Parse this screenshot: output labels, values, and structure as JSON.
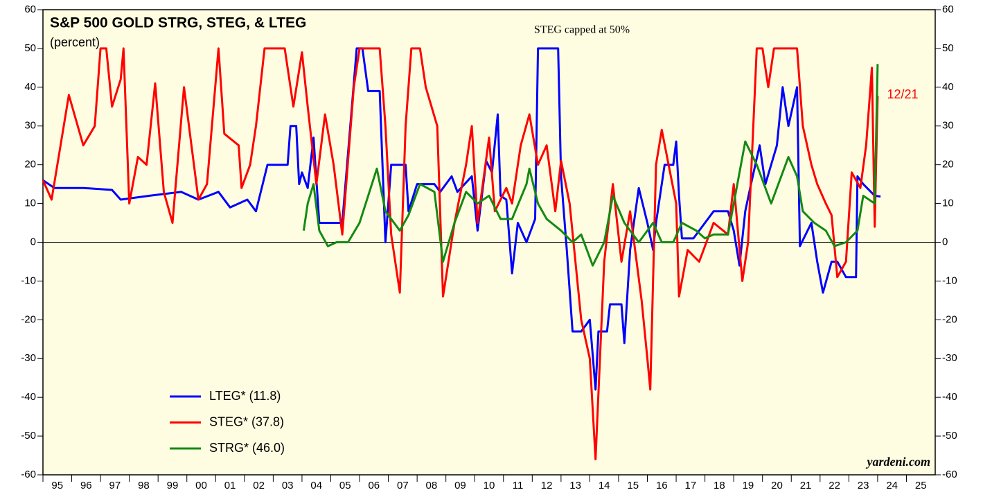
{
  "chart_data": {
    "type": "line",
    "title": "S&P 500 GOLD STRG, STEG, & LTEG",
    "subtitle": "(percent)",
    "annotations": [
      "STEG capped at 50%",
      "12/21",
      "yardeni.com"
    ],
    "xlim": [
      1995,
      2026
    ],
    "xticks": [
      {
        "value": 1995,
        "label": "95"
      },
      {
        "value": 1996,
        "label": "96"
      },
      {
        "value": 1997,
        "label": "97"
      },
      {
        "value": 1998,
        "label": "98"
      },
      {
        "value": 1999,
        "label": "99"
      },
      {
        "value": 2000,
        "label": "00"
      },
      {
        "value": 2001,
        "label": "01"
      },
      {
        "value": 2002,
        "label": "02"
      },
      {
        "value": 2003,
        "label": "03"
      },
      {
        "value": 2004,
        "label": "04"
      },
      {
        "value": 2005,
        "label": "05"
      },
      {
        "value": 2006,
        "label": "06"
      },
      {
        "value": 2007,
        "label": "07"
      },
      {
        "value": 2008,
        "label": "08"
      },
      {
        "value": 2009,
        "label": "09"
      },
      {
        "value": 2010,
        "label": "10"
      },
      {
        "value": 2011,
        "label": "11"
      },
      {
        "value": 2012,
        "label": "12"
      },
      {
        "value": 2013,
        "label": "13"
      },
      {
        "value": 2014,
        "label": "14"
      },
      {
        "value": 2015,
        "label": "15"
      },
      {
        "value": 2016,
        "label": "16"
      },
      {
        "value": 2017,
        "label": "17"
      },
      {
        "value": 2018,
        "label": "18"
      },
      {
        "value": 2019,
        "label": "19"
      },
      {
        "value": 2020,
        "label": "20"
      },
      {
        "value": 2021,
        "label": "21"
      },
      {
        "value": 2022,
        "label": "22"
      },
      {
        "value": 2023,
        "label": "23"
      },
      {
        "value": 2024,
        "label": "24"
      },
      {
        "value": 2025,
        "label": "25"
      }
    ],
    "ylim": [
      -60,
      60
    ],
    "yticks": [
      -60,
      -50,
      -40,
      -30,
      -20,
      -10,
      0,
      10,
      20,
      30,
      40,
      50,
      60
    ],
    "series": [
      {
        "name": "LTEG* (11.8)",
        "color": "#0000ff",
        "x": [
          1995.0,
          1995.4,
          1996.4,
          1997.4,
          1997.7,
          1998.7,
          1999.8,
          2000.4,
          2001.1,
          2001.5,
          2002.1,
          2002.4,
          2002.8,
          2003.5,
          2003.6,
          2003.8,
          2003.9,
          2004.0,
          2004.2,
          2004.4,
          2004.6,
          2005.4,
          2005.9,
          2006.1,
          2006.3,
          2006.7,
          2006.9,
          2007.1,
          2007.6,
          2007.7,
          2008.0,
          2008.6,
          2008.8,
          2009.2,
          2009.4,
          2009.9,
          2010.1,
          2010.4,
          2010.6,
          2010.8,
          2010.9,
          2011.1,
          2011.3,
          2011.5,
          2011.8,
          2012.1,
          2012.2,
          2012.9,
          2013.0,
          2013.2,
          2013.4,
          2013.7,
          2014.0,
          2014.2,
          2014.3,
          2014.6,
          2014.7,
          2015.1,
          2015.2,
          2015.4,
          2015.7,
          2016.0,
          2016.2,
          2016.3,
          2016.6,
          2016.9,
          2017.0,
          2017.1,
          2017.2,
          2017.6,
          2018.3,
          2018.8,
          2019.0,
          2019.2,
          2019.4,
          2019.6,
          2019.9,
          2020.1,
          2020.5,
          2020.7,
          2020.9,
          2021.2,
          2021.3,
          2021.7,
          2021.9,
          2022.1,
          2022.4,
          2022.6,
          2022.9,
          2023.25,
          2023.3,
          2023.5,
          2023.9,
          2024.1
        ],
        "values": [
          16,
          14,
          14,
          13.5,
          11,
          12,
          13,
          11,
          13,
          9,
          11,
          8,
          20,
          20,
          30,
          30,
          15,
          18,
          14,
          27,
          5,
          5,
          50,
          50,
          39,
          39,
          0,
          20,
          20,
          8,
          15,
          15,
          13,
          17,
          13,
          17,
          3,
          21,
          18,
          33,
          12,
          11,
          -8,
          5,
          0,
          6,
          50,
          50,
          17,
          -2,
          -23,
          -23,
          -20,
          -38,
          -23,
          -23,
          -16,
          -16,
          -26,
          -2,
          14,
          5,
          -2,
          5,
          20,
          20,
          26,
          12,
          1,
          1,
          8,
          8,
          3,
          -6,
          8,
          15,
          25,
          15,
          25,
          40,
          30,
          40,
          -1,
          5,
          -5,
          -13,
          -5,
          -5,
          -9,
          -9,
          17,
          15,
          12,
          11.8
        ]
      },
      {
        "name": "STEG* (37.8)",
        "color": "#ff0000",
        "x": [
          1995.0,
          1995.3,
          1995.9,
          1996.4,
          1996.8,
          1997.0,
          1997.2,
          1997.4,
          1997.7,
          1997.8,
          1998.0,
          1998.3,
          1998.6,
          1998.9,
          1999.2,
          1999.5,
          1999.9,
          2000.4,
          2000.7,
          2001.1,
          2001.3,
          2001.8,
          2001.9,
          2002.2,
          2002.4,
          2002.7,
          2003.4,
          2003.7,
          2004.0,
          2004.2,
          2004.5,
          2004.8,
          2005.1,
          2005.4,
          2005.8,
          2006.0,
          2006.7,
          2006.9,
          2007.1,
          2007.4,
          2007.6,
          2007.8,
          2008.1,
          2008.3,
          2008.7,
          2008.9,
          2009.3,
          2009.7,
          2009.9,
          2010.1,
          2010.5,
          2010.7,
          2011.1,
          2011.3,
          2011.6,
          2011.9,
          2012.2,
          2012.5,
          2012.8,
          2013.0,
          2013.3,
          2013.7,
          2014.0,
          2014.2,
          2014.5,
          2014.8,
          2015.1,
          2015.4,
          2015.8,
          2016.0,
          2016.1,
          2016.3,
          2016.5,
          2017.0,
          2017.1,
          2017.4,
          2017.8,
          2018.3,
          2018.8,
          2019.0,
          2019.3,
          2019.5,
          2019.8,
          2020.0,
          2020.2,
          2020.4,
          2021.2,
          2021.4,
          2021.7,
          2021.9,
          2022.2,
          2022.4,
          2022.6,
          2022.9,
          2023.1,
          2023.4,
          2023.6,
          2023.8,
          2023.9,
          2024.0
        ],
        "values": [
          16,
          11,
          38,
          25,
          30,
          50,
          50,
          35,
          42,
          50,
          10,
          22,
          20,
          41,
          13,
          5,
          40,
          11,
          15,
          50,
          28,
          25,
          14,
          20,
          30,
          50,
          50,
          35,
          49,
          35,
          15,
          33,
          20,
          2,
          40,
          50,
          50,
          30,
          2,
          -13,
          30,
          50,
          50,
          40,
          30,
          -14,
          5,
          20,
          30,
          5,
          27,
          8,
          14,
          10,
          25,
          33,
          20,
          25,
          8,
          21,
          10,
          -20,
          -30,
          -56,
          -5,
          15,
          -5,
          8,
          -15,
          -30,
          -38,
          20,
          29,
          10,
          -14,
          -2,
          -5,
          5,
          2,
          15,
          -10,
          0,
          50,
          50,
          40,
          50,
          50,
          30,
          20,
          15,
          10,
          7,
          -9,
          -5,
          18,
          14,
          25,
          45,
          4,
          37.8
        ]
      },
      {
        "name": "STRG* (46.0)",
        "color": "#138a13",
        "x": [
          2004.06,
          2004.2,
          2004.4,
          2004.6,
          2004.9,
          2005.2,
          2005.6,
          2006.0,
          2006.3,
          2006.6,
          2006.9,
          2007.4,
          2007.7,
          2008.1,
          2008.6,
          2008.9,
          2009.3,
          2009.7,
          2010.1,
          2010.5,
          2010.9,
          2011.3,
          2011.8,
          2011.9,
          2012.2,
          2012.5,
          2013.0,
          2013.4,
          2013.7,
          2014.1,
          2014.5,
          2014.8,
          2015.2,
          2015.7,
          2016.2,
          2016.5,
          2016.9,
          2017.2,
          2017.7,
          2018.0,
          2018.3,
          2018.8,
          2019.0,
          2019.4,
          2019.8,
          2020.3,
          2020.7,
          2020.9,
          2021.2,
          2021.4,
          2021.8,
          2022.2,
          2022.5,
          2022.9,
          2023.3,
          2023.5,
          2023.9,
          2024.0
        ],
        "values": [
          3,
          10,
          15,
          3,
          -1,
          0,
          0,
          5,
          12,
          19,
          8,
          3,
          7,
          15,
          13,
          -5,
          5,
          13,
          10,
          12,
          6,
          6,
          15,
          19,
          10,
          6,
          3,
          0,
          2,
          -6,
          0,
          12,
          5,
          0,
          5,
          0,
          0,
          5,
          3,
          1,
          2,
          2,
          10,
          26,
          20,
          10,
          18,
          22,
          17,
          8,
          5,
          3,
          -1,
          0,
          3,
          12,
          10,
          46
        ]
      }
    ]
  }
}
